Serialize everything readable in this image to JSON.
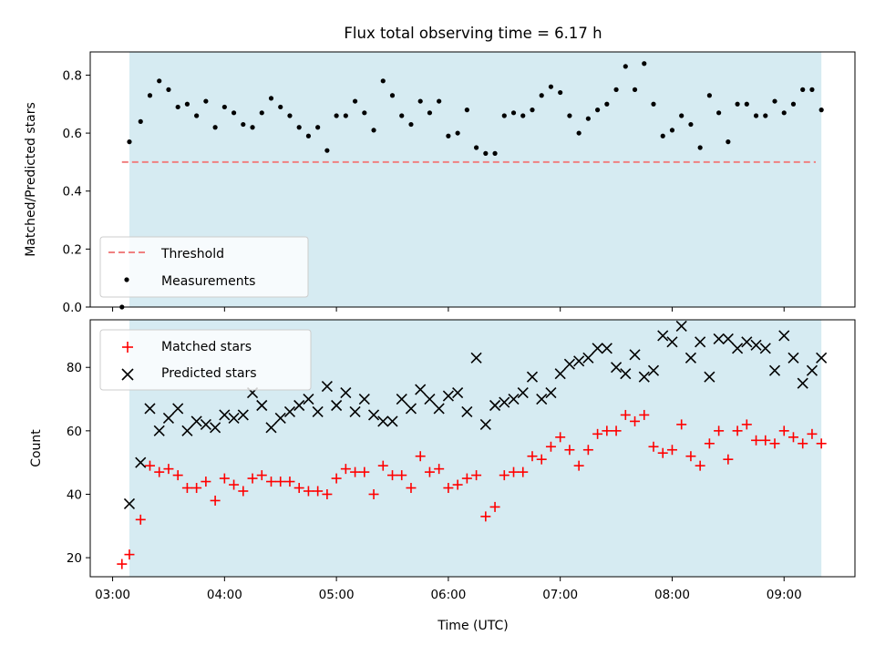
{
  "colors": {
    "background": "#ffffff",
    "observing_band": "#add8e6",
    "threshold": "#f08080",
    "measurements": "#000000",
    "matched": "#ff0000",
    "predicted": "#000000"
  },
  "chart_data": [
    {
      "type": "scatter",
      "title": "Flux total observing time = 6.17 h",
      "xlabel": "",
      "ylabel": "Matched/Predicted stars",
      "xlim": [
        "02:48",
        "09:38"
      ],
      "ylim": [
        0,
        0.88
      ],
      "yticks": [
        0.0,
        0.2,
        0.4,
        0.6,
        0.8
      ],
      "ytick_labels": [
        "0.0",
        "0.2",
        "0.4",
        "0.6",
        "0.8"
      ],
      "xticks": [
        "03:00",
        "04:00",
        "05:00",
        "06:00",
        "07:00",
        "08:00",
        "09:00"
      ],
      "observing_window": [
        "03:09",
        "09:20"
      ],
      "legend_position": "lower-left",
      "threshold": {
        "name": "Threshold",
        "value": 0.5,
        "x_range": [
          "03:05",
          "09:17"
        ],
        "style": "dashed"
      },
      "series": [
        {
          "name": "Measurements",
          "marker": "dot",
          "points": [
            [
              "03:05",
              0.0
            ],
            [
              "03:09",
              0.57
            ],
            [
              "03:15",
              0.64
            ],
            [
              "03:20",
              0.73
            ],
            [
              "03:25",
              0.78
            ],
            [
              "03:30",
              0.75
            ],
            [
              "03:35",
              0.69
            ],
            [
              "03:40",
              0.7
            ],
            [
              "03:45",
              0.66
            ],
            [
              "03:50",
              0.71
            ],
            [
              "03:55",
              0.62
            ],
            [
              "04:00",
              0.69
            ],
            [
              "04:05",
              0.67
            ],
            [
              "04:10",
              0.63
            ],
            [
              "04:15",
              0.62
            ],
            [
              "04:20",
              0.67
            ],
            [
              "04:25",
              0.72
            ],
            [
              "04:30",
              0.69
            ],
            [
              "04:35",
              0.66
            ],
            [
              "04:40",
              0.62
            ],
            [
              "04:45",
              0.59
            ],
            [
              "04:50",
              0.62
            ],
            [
              "04:55",
              0.54
            ],
            [
              "05:00",
              0.66
            ],
            [
              "05:05",
              0.66
            ],
            [
              "05:10",
              0.71
            ],
            [
              "05:15",
              0.67
            ],
            [
              "05:20",
              0.61
            ],
            [
              "05:25",
              0.78
            ],
            [
              "05:30",
              0.73
            ],
            [
              "05:35",
              0.66
            ],
            [
              "05:40",
              0.63
            ],
            [
              "05:45",
              0.71
            ],
            [
              "05:50",
              0.67
            ],
            [
              "05:55",
              0.71
            ],
            [
              "06:00",
              0.59
            ],
            [
              "06:05",
              0.6
            ],
            [
              "06:10",
              0.68
            ],
            [
              "06:15",
              0.55
            ],
            [
              "06:20",
              0.53
            ],
            [
              "06:25",
              0.53
            ],
            [
              "06:30",
              0.66
            ],
            [
              "06:35",
              0.67
            ],
            [
              "06:40",
              0.66
            ],
            [
              "06:45",
              0.68
            ],
            [
              "06:50",
              0.73
            ],
            [
              "06:55",
              0.76
            ],
            [
              "07:00",
              0.74
            ],
            [
              "07:05",
              0.66
            ],
            [
              "07:10",
              0.6
            ],
            [
              "07:15",
              0.65
            ],
            [
              "07:20",
              0.68
            ],
            [
              "07:25",
              0.7
            ],
            [
              "07:30",
              0.75
            ],
            [
              "07:35",
              0.83
            ],
            [
              "07:40",
              0.75
            ],
            [
              "07:45",
              0.84
            ],
            [
              "07:50",
              0.7
            ],
            [
              "07:55",
              0.59
            ],
            [
              "08:00",
              0.61
            ],
            [
              "08:05",
              0.66
            ],
            [
              "08:10",
              0.63
            ],
            [
              "08:15",
              0.55
            ],
            [
              "08:20",
              0.73
            ],
            [
              "08:25",
              0.67
            ],
            [
              "08:30",
              0.57
            ],
            [
              "08:35",
              0.7
            ],
            [
              "08:40",
              0.7
            ],
            [
              "08:45",
              0.66
            ],
            [
              "08:50",
              0.66
            ],
            [
              "08:55",
              0.71
            ],
            [
              "09:00",
              0.67
            ],
            [
              "09:05",
              0.7
            ],
            [
              "09:10",
              0.75
            ],
            [
              "09:15",
              0.75
            ],
            [
              "09:20",
              0.68
            ]
          ]
        }
      ]
    },
    {
      "type": "scatter",
      "title": "",
      "xlabel": "Time (UTC)",
      "ylabel": "Count",
      "xlim": [
        "02:48",
        "09:38"
      ],
      "ylim": [
        14,
        95
      ],
      "yticks": [
        20,
        40,
        60,
        80
      ],
      "ytick_labels": [
        "20",
        "40",
        "60",
        "80"
      ],
      "xticks": [
        "03:00",
        "04:00",
        "05:00",
        "06:00",
        "07:00",
        "08:00",
        "09:00"
      ],
      "xtick_labels": [
        "03:00",
        "04:00",
        "05:00",
        "06:00",
        "07:00",
        "08:00",
        "09:00"
      ],
      "observing_window": [
        "03:09",
        "09:20"
      ],
      "legend_position": "upper-left",
      "series": [
        {
          "name": "Matched stars",
          "marker": "plus",
          "points": [
            [
              "03:05",
              18
            ],
            [
              "03:09",
              21
            ],
            [
              "03:15",
              32
            ],
            [
              "03:20",
              49
            ],
            [
              "03:25",
              47
            ],
            [
              "03:30",
              48
            ],
            [
              "03:35",
              46
            ],
            [
              "03:40",
              42
            ],
            [
              "03:45",
              42
            ],
            [
              "03:50",
              44
            ],
            [
              "03:55",
              38
            ],
            [
              "04:00",
              45
            ],
            [
              "04:05",
              43
            ],
            [
              "04:10",
              41
            ],
            [
              "04:15",
              45
            ],
            [
              "04:20",
              46
            ],
            [
              "04:25",
              44
            ],
            [
              "04:30",
              44
            ],
            [
              "04:35",
              44
            ],
            [
              "04:40",
              42
            ],
            [
              "04:45",
              41
            ],
            [
              "04:50",
              41
            ],
            [
              "04:55",
              40
            ],
            [
              "05:00",
              45
            ],
            [
              "05:05",
              48
            ],
            [
              "05:10",
              47
            ],
            [
              "05:15",
              47
            ],
            [
              "05:20",
              40
            ],
            [
              "05:25",
              49
            ],
            [
              "05:30",
              46
            ],
            [
              "05:35",
              46
            ],
            [
              "05:40",
              42
            ],
            [
              "05:45",
              52
            ],
            [
              "05:50",
              47
            ],
            [
              "05:55",
              48
            ],
            [
              "06:00",
              42
            ],
            [
              "06:05",
              43
            ],
            [
              "06:10",
              45
            ],
            [
              "06:15",
              46
            ],
            [
              "06:20",
              33
            ],
            [
              "06:25",
              36
            ],
            [
              "06:30",
              46
            ],
            [
              "06:35",
              47
            ],
            [
              "06:40",
              47
            ],
            [
              "06:45",
              52
            ],
            [
              "06:50",
              51
            ],
            [
              "06:55",
              55
            ],
            [
              "07:00",
              58
            ],
            [
              "07:05",
              54
            ],
            [
              "07:10",
              49
            ],
            [
              "07:15",
              54
            ],
            [
              "07:20",
              59
            ],
            [
              "07:25",
              60
            ],
            [
              "07:30",
              60
            ],
            [
              "07:35",
              65
            ],
            [
              "07:40",
              63
            ],
            [
              "07:45",
              65
            ],
            [
              "07:50",
              55
            ],
            [
              "07:55",
              53
            ],
            [
              "08:00",
              54
            ],
            [
              "08:05",
              62
            ],
            [
              "08:10",
              52
            ],
            [
              "08:15",
              49
            ],
            [
              "08:20",
              56
            ],
            [
              "08:25",
              60
            ],
            [
              "08:30",
              51
            ],
            [
              "08:35",
              60
            ],
            [
              "08:40",
              62
            ],
            [
              "08:45",
              57
            ],
            [
              "08:50",
              57
            ],
            [
              "08:55",
              56
            ],
            [
              "09:00",
              60
            ],
            [
              "09:05",
              58
            ],
            [
              "09:10",
              56
            ],
            [
              "09:15",
              59
            ],
            [
              "09:20",
              56
            ]
          ]
        },
        {
          "name": "Predicted stars",
          "marker": "x",
          "points": [
            [
              "03:09",
              37
            ],
            [
              "03:15",
              50
            ],
            [
              "03:20",
              67
            ],
            [
              "03:25",
              60
            ],
            [
              "03:30",
              64
            ],
            [
              "03:35",
              67
            ],
            [
              "03:40",
              60
            ],
            [
              "03:45",
              63
            ],
            [
              "03:50",
              62
            ],
            [
              "03:55",
              61
            ],
            [
              "04:00",
              65
            ],
            [
              "04:05",
              64
            ],
            [
              "04:10",
              65
            ],
            [
              "04:15",
              72
            ],
            [
              "04:20",
              68
            ],
            [
              "04:25",
              61
            ],
            [
              "04:30",
              64
            ],
            [
              "04:35",
              66
            ],
            [
              "04:40",
              68
            ],
            [
              "04:45",
              70
            ],
            [
              "04:50",
              66
            ],
            [
              "04:55",
              74
            ],
            [
              "05:00",
              68
            ],
            [
              "05:05",
              72
            ],
            [
              "05:10",
              66
            ],
            [
              "05:15",
              70
            ],
            [
              "05:20",
              65
            ],
            [
              "05:25",
              63
            ],
            [
              "05:30",
              63
            ],
            [
              "05:35",
              70
            ],
            [
              "05:40",
              67
            ],
            [
              "05:45",
              73
            ],
            [
              "05:50",
              70
            ],
            [
              "05:55",
              67
            ],
            [
              "06:00",
              71
            ],
            [
              "06:05",
              72
            ],
            [
              "06:10",
              66
            ],
            [
              "06:15",
              83
            ],
            [
              "06:20",
              62
            ],
            [
              "06:25",
              68
            ],
            [
              "06:30",
              69
            ],
            [
              "06:35",
              70
            ],
            [
              "06:40",
              72
            ],
            [
              "06:45",
              77
            ],
            [
              "06:50",
              70
            ],
            [
              "06:55",
              72
            ],
            [
              "07:00",
              78
            ],
            [
              "07:05",
              81
            ],
            [
              "07:10",
              82
            ],
            [
              "07:15",
              83
            ],
            [
              "07:20",
              86
            ],
            [
              "07:25",
              86
            ],
            [
              "07:30",
              80
            ],
            [
              "07:35",
              78
            ],
            [
              "07:40",
              84
            ],
            [
              "07:45",
              77
            ],
            [
              "07:50",
              79
            ],
            [
              "07:55",
              90
            ],
            [
              "08:00",
              88
            ],
            [
              "08:05",
              93
            ],
            [
              "08:10",
              83
            ],
            [
              "08:15",
              88
            ],
            [
              "08:20",
              77
            ],
            [
              "08:25",
              89
            ],
            [
              "08:30",
              89
            ],
            [
              "08:35",
              86
            ],
            [
              "08:40",
              88
            ],
            [
              "08:45",
              87
            ],
            [
              "08:50",
              86
            ],
            [
              "08:55",
              79
            ],
            [
              "09:00",
              90
            ],
            [
              "09:05",
              83
            ],
            [
              "09:10",
              75
            ],
            [
              "09:15",
              79
            ],
            [
              "09:20",
              83
            ]
          ]
        }
      ]
    }
  ]
}
